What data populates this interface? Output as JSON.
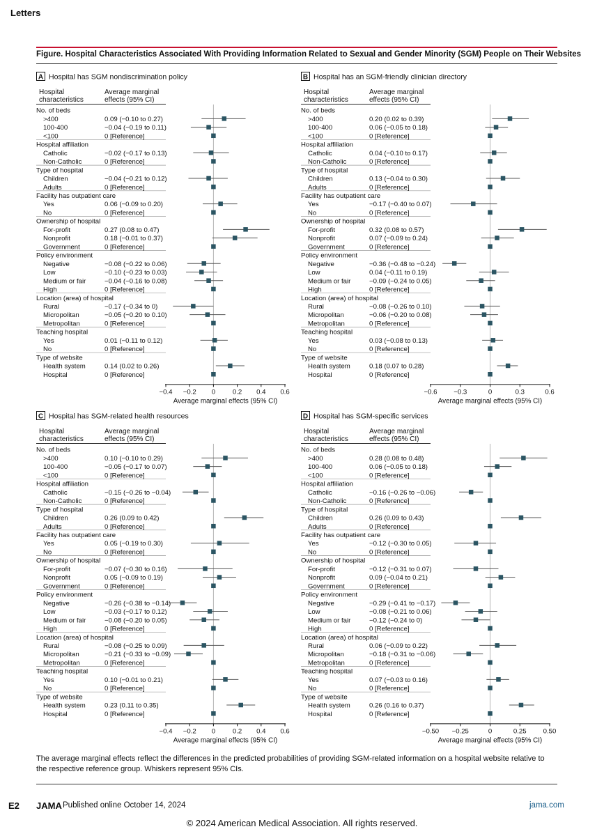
{
  "page": {
    "section": "Letters",
    "figure_title": "Figure. Hospital Characteristics Associated With Providing Information Related to Sexual and Gender Minority (SGM) People on Their Websites",
    "caption": "The average marginal effects reflect the differences in the predicted probabilities of providing SGM-related information on a hospital website relative to the respective reference group. Whiskers represent 95% CIs.",
    "footer": {
      "page_number": "E2",
      "journal": "JAMA",
      "published": "Published online October 14, 2024",
      "site": "jama.com"
    },
    "copyright": "© 2024 American Medical Association. All rights reserved.",
    "colors": {
      "accent_rule": "#c8102e",
      "marker": "#2b5563",
      "link": "#1a5e8a"
    }
  },
  "chart_data": [
    {
      "type": "forest",
      "panel": "A",
      "title": "Hospital has SGM nondiscrimination policy",
      "col_header_1": "Hospital characteristics",
      "col_header_2": "Average marginal effects (95% CI)",
      "xlabel": "Average marginal effects (95% CI)",
      "xlim": [
        -0.4,
        0.6
      ],
      "ticks": [
        -0.4,
        -0.2,
        0,
        0.2,
        0.4,
        0.6
      ],
      "tick_labels": [
        "−0.4",
        "−0.2",
        "0",
        "0.2",
        "0.4",
        "0.6"
      ],
      "rows": [
        {
          "label": "No. of beds",
          "header": true
        },
        {
          "label": ">400",
          "ci": "0.09 (−0.10 to 0.27)",
          "est": 0.09,
          "lo": -0.1,
          "hi": 0.27
        },
        {
          "label": "100-400",
          "ci": "−0.04 (−0.19 to 0.11)",
          "est": -0.04,
          "lo": -0.19,
          "hi": 0.11
        },
        {
          "label": "<100",
          "ci": "0 [Reference]",
          "est": 0,
          "ref": true
        },
        {
          "label": "Hospital affiliation",
          "header": true
        },
        {
          "label": "Catholic",
          "ci": "−0.02 (−0.17 to 0.13)",
          "est": -0.02,
          "lo": -0.17,
          "hi": 0.13
        },
        {
          "label": "Non-Catholic",
          "ci": "0 [Reference]",
          "est": 0,
          "ref": true
        },
        {
          "label": "Type of hospital",
          "header": true
        },
        {
          "label": "Children",
          "ci": "−0.04 (−0.21 to 0.12)",
          "est": -0.04,
          "lo": -0.21,
          "hi": 0.12
        },
        {
          "label": "Adults",
          "ci": "0 [Reference]",
          "est": 0,
          "ref": true
        },
        {
          "label": "Facility has outpatient care",
          "header": true
        },
        {
          "label": "Yes",
          "ci": "0.06 (−0.09 to 0.20)",
          "est": 0.06,
          "lo": -0.09,
          "hi": 0.2
        },
        {
          "label": "No",
          "ci": "0 [Reference]",
          "est": 0,
          "ref": true
        },
        {
          "label": "Ownership of hospital",
          "header": true
        },
        {
          "label": "For-profit",
          "ci": "0.27 (0.08 to 0.47)",
          "est": 0.27,
          "lo": 0.08,
          "hi": 0.47
        },
        {
          "label": "Nonprofit",
          "ci": "0.18 (−0.01 to 0.37)",
          "est": 0.18,
          "lo": -0.01,
          "hi": 0.37
        },
        {
          "label": "Government",
          "ci": "0 [Reference]",
          "est": 0,
          "ref": true
        },
        {
          "label": "Policy environment",
          "header": true
        },
        {
          "label": "Negative",
          "ci": "−0.08 (−0.22 to 0.06)",
          "est": -0.08,
          "lo": -0.22,
          "hi": 0.06
        },
        {
          "label": "Low",
          "ci": "−0.10 (−0.23 to 0.03)",
          "est": -0.1,
          "lo": -0.23,
          "hi": 0.03
        },
        {
          "label": "Medium or fair",
          "ci": "−0.04 (−0.16 to 0.08)",
          "est": -0.04,
          "lo": -0.16,
          "hi": 0.08
        },
        {
          "label": "High",
          "ci": "0 [Reference]",
          "est": 0,
          "ref": true
        },
        {
          "label": "Location (area) of hospital",
          "header": true
        },
        {
          "label": "Rural",
          "ci": "−0.17 (−0.34 to 0)",
          "est": -0.17,
          "lo": -0.34,
          "hi": 0
        },
        {
          "label": "Micropolitan",
          "ci": "−0.05 (−0.20 to 0.10)",
          "est": -0.05,
          "lo": -0.2,
          "hi": 0.1
        },
        {
          "label": "Metropolitan",
          "ci": "0 [Reference]",
          "est": 0,
          "ref": true
        },
        {
          "label": "Teaching hospital",
          "header": true
        },
        {
          "label": "Yes",
          "ci": "0.01 (−0.11 to 0.12)",
          "est": 0.01,
          "lo": -0.11,
          "hi": 0.12
        },
        {
          "label": "No",
          "ci": "0 [Reference]",
          "est": 0,
          "ref": true
        },
        {
          "label": "Type of website",
          "header": true
        },
        {
          "label": "Health system",
          "ci": "0.14 (0.02 to 0.26)",
          "est": 0.14,
          "lo": 0.02,
          "hi": 0.26
        },
        {
          "label": "Hospital",
          "ci": "0 [Reference]",
          "est": 0,
          "ref": true
        }
      ]
    },
    {
      "type": "forest",
      "panel": "B",
      "title": "Hospital has an SGM-friendly clinician directory",
      "col_header_1": "Hospital characteristics",
      "col_header_2": "Average marginal effects (95% CI)",
      "xlabel": "Average marginal effects (95% CI)",
      "xlim": [
        -0.6,
        0.6
      ],
      "ticks": [
        -0.6,
        -0.3,
        0,
        0.3,
        0.6
      ],
      "tick_labels": [
        "−0.6",
        "−0.3",
        "0",
        "0.3",
        "0.6"
      ],
      "rows": [
        {
          "label": "No. of beds",
          "header": true
        },
        {
          "label": ">400",
          "ci": "0.20 (0.02 to 0.39)",
          "est": 0.2,
          "lo": 0.02,
          "hi": 0.39
        },
        {
          "label": "100-400",
          "ci": "0.06 (−0.05 to 0.18)",
          "est": 0.06,
          "lo": -0.05,
          "hi": 0.18
        },
        {
          "label": "<100",
          "ci": "0 [Reference]",
          "est": 0,
          "ref": true
        },
        {
          "label": "Hospital affiliation",
          "header": true
        },
        {
          "label": "Catholic",
          "ci": "0.04 (−0.10 to 0.17)",
          "est": 0.04,
          "lo": -0.1,
          "hi": 0.17
        },
        {
          "label": "Non-Catholic",
          "ci": "0 [Reference]",
          "est": 0,
          "ref": true
        },
        {
          "label": "Type of hospital",
          "header": true
        },
        {
          "label": "Children",
          "ci": "0.13 (−0.04 to 0.30)",
          "est": 0.13,
          "lo": -0.04,
          "hi": 0.3
        },
        {
          "label": "Adults",
          "ci": "0 [Reference]",
          "est": 0,
          "ref": true
        },
        {
          "label": "Facility has outpatient care",
          "header": true
        },
        {
          "label": "Yes",
          "ci": "−0.17 (−0.40 to 0.07)",
          "est": -0.17,
          "lo": -0.4,
          "hi": 0.07
        },
        {
          "label": "No",
          "ci": "0 [Reference]",
          "est": 0,
          "ref": true
        },
        {
          "label": "Ownership of hospital",
          "header": true
        },
        {
          "label": "For-profit",
          "ci": "0.32 (0.08 to 0.57)",
          "est": 0.32,
          "lo": 0.08,
          "hi": 0.57
        },
        {
          "label": "Nonprofit",
          "ci": "0.07 (−0.09 to 0.24)",
          "est": 0.07,
          "lo": -0.09,
          "hi": 0.24
        },
        {
          "label": "Government",
          "ci": "0 [Reference]",
          "est": 0,
          "ref": true
        },
        {
          "label": "Policy environment",
          "header": true
        },
        {
          "label": "Negative",
          "ci": "−0.36 (−0.48 to −0.24)",
          "est": -0.36,
          "lo": -0.48,
          "hi": -0.24
        },
        {
          "label": "Low",
          "ci": "0.04 (−0.11 to 0.19)",
          "est": 0.04,
          "lo": -0.11,
          "hi": 0.19
        },
        {
          "label": "Medium or fair",
          "ci": "−0.09 (−0.24 to 0.05)",
          "est": -0.09,
          "lo": -0.24,
          "hi": 0.05
        },
        {
          "label": "High",
          "ci": "0 [Reference]",
          "est": 0,
          "ref": true
        },
        {
          "label": "Location (area) of hospital",
          "header": true
        },
        {
          "label": "Rural",
          "ci": "−0.08 (−0.26 to 0.10)",
          "est": -0.08,
          "lo": -0.26,
          "hi": 0.1
        },
        {
          "label": "Micropolitan",
          "ci": "−0.06 (−0.20 to 0.08)",
          "est": -0.06,
          "lo": -0.2,
          "hi": 0.08
        },
        {
          "label": "Metropolitan",
          "ci": "0 [Reference]",
          "est": 0,
          "ref": true
        },
        {
          "label": "Teaching hospital",
          "header": true
        },
        {
          "label": "Yes",
          "ci": "0.03 (−0.08 to 0.13)",
          "est": 0.03,
          "lo": -0.08,
          "hi": 0.13
        },
        {
          "label": "No",
          "ci": "0 [Reference]",
          "est": 0,
          "ref": true
        },
        {
          "label": "Type of website",
          "header": true
        },
        {
          "label": "Health system",
          "ci": "0.18 (0.07 to 0.28)",
          "est": 0.18,
          "lo": 0.07,
          "hi": 0.28
        },
        {
          "label": "Hospital",
          "ci": "0 [Reference]",
          "est": 0,
          "ref": true
        }
      ]
    },
    {
      "type": "forest",
      "panel": "C",
      "title": "Hospital has SGM-related health resources",
      "col_header_1": "Hospital characteristics",
      "col_header_2": "Average marginal effects (95% CI)",
      "xlabel": "Average marginal effects (95% CI)",
      "xlim": [
        -0.4,
        0.6
      ],
      "ticks": [
        -0.4,
        -0.2,
        0,
        0.2,
        0.4,
        0.6
      ],
      "tick_labels": [
        "−0.4",
        "−0.2",
        "0",
        "0.2",
        "0.4",
        "0.6"
      ],
      "rows": [
        {
          "label": "No. of beds",
          "header": true
        },
        {
          "label": ">400",
          "ci": "0.10 (−0.10 to 0.29)",
          "est": 0.1,
          "lo": -0.1,
          "hi": 0.29
        },
        {
          "label": "100-400",
          "ci": "−0.05 (−0.17 to 0.07)",
          "est": -0.05,
          "lo": -0.17,
          "hi": 0.07
        },
        {
          "label": "<100",
          "ci": "0 [Reference]",
          "est": 0,
          "ref": true
        },
        {
          "label": "Hospital affiliation",
          "header": true
        },
        {
          "label": "Catholic",
          "ci": "−0.15 (−0.26 to −0.04)",
          "est": -0.15,
          "lo": -0.26,
          "hi": -0.04
        },
        {
          "label": "Non-Catholic",
          "ci": "0 [Reference]",
          "est": 0,
          "ref": true
        },
        {
          "label": "Type of hospital",
          "header": true
        },
        {
          "label": "Children",
          "ci": "0.26 (0.09 to 0.42)",
          "est": 0.26,
          "lo": 0.09,
          "hi": 0.42
        },
        {
          "label": "Adults",
          "ci": "0 [Reference]",
          "est": 0,
          "ref": true
        },
        {
          "label": "Facility has outpatient care",
          "header": true
        },
        {
          "label": "Yes",
          "ci": "0.05 (−0.19 to 0.30)",
          "est": 0.05,
          "lo": -0.19,
          "hi": 0.3
        },
        {
          "label": "No",
          "ci": "0 [Reference]",
          "est": 0,
          "ref": true
        },
        {
          "label": "Ownership of hospital",
          "header": true
        },
        {
          "label": "For-profit",
          "ci": "−0.07 (−0.30 to 0.16)",
          "est": -0.07,
          "lo": -0.3,
          "hi": 0.16
        },
        {
          "label": "Nonprofit",
          "ci": "0.05 (−0.09 to 0.19)",
          "est": 0.05,
          "lo": -0.09,
          "hi": 0.19
        },
        {
          "label": "Government",
          "ci": "0 [Reference]",
          "est": 0,
          "ref": true
        },
        {
          "label": "Policy environment",
          "header": true
        },
        {
          "label": "Negative",
          "ci": "−0.26 (−0.38 to −0.14)",
          "est": -0.26,
          "lo": -0.38,
          "hi": -0.14
        },
        {
          "label": "Low",
          "ci": "−0.03 (−0.17 to 0.12)",
          "est": -0.03,
          "lo": -0.17,
          "hi": 0.12
        },
        {
          "label": "Medium or fair",
          "ci": "−0.08 (−0.20 to 0.05)",
          "est": -0.08,
          "lo": -0.2,
          "hi": 0.05
        },
        {
          "label": "High",
          "ci": "0 [Reference]",
          "est": 0,
          "ref": true
        },
        {
          "label": "Location (area) of hospital",
          "header": true
        },
        {
          "label": "Rural",
          "ci": "−0.08 (−0.25 to 0.09)",
          "est": -0.08,
          "lo": -0.25,
          "hi": 0.09
        },
        {
          "label": "Micropolitan",
          "ci": "−0.21 (−0.33 to −0.09)",
          "est": -0.21,
          "lo": -0.33,
          "hi": -0.09
        },
        {
          "label": "Metropolitan",
          "ci": "0 [Reference]",
          "est": 0,
          "ref": true
        },
        {
          "label": "Teaching hospital",
          "header": true
        },
        {
          "label": "Yes",
          "ci": "0.10 (−0.01 to 0.21)",
          "est": 0.1,
          "lo": -0.01,
          "hi": 0.21
        },
        {
          "label": "No",
          "ci": "0 [Reference]",
          "est": 0,
          "ref": true
        },
        {
          "label": "Type of website",
          "header": true
        },
        {
          "label": "Health system",
          "ci": "0.23 (0.11 to 0.35)",
          "est": 0.23,
          "lo": 0.11,
          "hi": 0.35
        },
        {
          "label": "Hospital",
          "ci": "0 [Reference]",
          "est": 0,
          "ref": true
        }
      ]
    },
    {
      "type": "forest",
      "panel": "D",
      "title": "Hospital has SGM-specific services",
      "col_header_1": "Hospital characteristics",
      "col_header_2": "Average marginal effects (95% CI)",
      "xlabel": "Average marginal effects (95% CI)",
      "xlim": [
        -0.5,
        0.5
      ],
      "ticks": [
        -0.5,
        -0.25,
        0,
        0.25,
        0.5
      ],
      "tick_labels": [
        "−0.50",
        "−0.25",
        "0",
        "0.25",
        "0.50"
      ],
      "rows": [
        {
          "label": "No. of beds",
          "header": true
        },
        {
          "label": ">400",
          "ci": "0.28 (0.08 to 0.48)",
          "est": 0.28,
          "lo": 0.08,
          "hi": 0.48
        },
        {
          "label": "100-400",
          "ci": "0.06 (−0.05 to 0.18)",
          "est": 0.06,
          "lo": -0.05,
          "hi": 0.18
        },
        {
          "label": "<100",
          "ci": "0 [Reference]",
          "est": 0,
          "ref": true
        },
        {
          "label": "Hospital affiliation",
          "header": true
        },
        {
          "label": "Catholic",
          "ci": "−0.16 (−0.26 to −0.06)",
          "est": -0.16,
          "lo": -0.26,
          "hi": -0.06
        },
        {
          "label": "Non-Catholic",
          "ci": "0 [Reference]",
          "est": 0,
          "ref": true
        },
        {
          "label": "Type of hospital",
          "header": true
        },
        {
          "label": "Children",
          "ci": "0.26 (0.09 to 0.43)",
          "est": 0.26,
          "lo": 0.09,
          "hi": 0.43
        },
        {
          "label": "Adults",
          "ci": "0 [Reference]",
          "est": 0,
          "ref": true
        },
        {
          "label": "Facility has outpatient care",
          "header": true
        },
        {
          "label": "Yes",
          "ci": "−0.12 (−0.30 to 0.05)",
          "est": -0.12,
          "lo": -0.3,
          "hi": 0.05
        },
        {
          "label": "No",
          "ci": "0 [Reference]",
          "est": 0,
          "ref": true
        },
        {
          "label": "Ownership of hospital",
          "header": true
        },
        {
          "label": "For-profit",
          "ci": "−0.12 (−0.31 to 0.07)",
          "est": -0.12,
          "lo": -0.31,
          "hi": 0.07
        },
        {
          "label": "Nonprofit",
          "ci": "0.09 (−0.04 to 0.21)",
          "est": 0.09,
          "lo": -0.04,
          "hi": 0.21
        },
        {
          "label": "Government",
          "ci": "0 [Reference]",
          "est": 0,
          "ref": true
        },
        {
          "label": "Policy environment",
          "header": true
        },
        {
          "label": "Negative",
          "ci": "−0.29 (−0.41 to −0.17)",
          "est": -0.29,
          "lo": -0.41,
          "hi": -0.17
        },
        {
          "label": "Low",
          "ci": "−0.08 (−0.21 to 0.06)",
          "est": -0.08,
          "lo": -0.21,
          "hi": 0.06
        },
        {
          "label": "Medium or fair",
          "ci": "−0.12 (−0.24 to 0)",
          "est": -0.12,
          "lo": -0.24,
          "hi": 0
        },
        {
          "label": "High",
          "ci": "0 [Reference]",
          "est": 0,
          "ref": true
        },
        {
          "label": "Location (area) of hospital",
          "header": true
        },
        {
          "label": "Rural",
          "ci": "0.06 (−0.09 to 0.22)",
          "est": 0.06,
          "lo": -0.09,
          "hi": 0.22
        },
        {
          "label": "Micropolitan",
          "ci": "−0.18 (−0.31 to −0.06)",
          "est": -0.18,
          "lo": -0.31,
          "hi": -0.06
        },
        {
          "label": "Metropolitan",
          "ci": "0 [Reference]",
          "est": 0,
          "ref": true
        },
        {
          "label": "Teaching hospital",
          "header": true
        },
        {
          "label": "Yes",
          "ci": "0.07 (−0.03 to 0.16)",
          "est": 0.07,
          "lo": -0.03,
          "hi": 0.16
        },
        {
          "label": "No",
          "ci": "0 [Reference]",
          "est": 0,
          "ref": true
        },
        {
          "label": "Type of website",
          "header": true
        },
        {
          "label": "Health system",
          "ci": "0.26 (0.16 to 0.37)",
          "est": 0.26,
          "lo": 0.16,
          "hi": 0.37
        },
        {
          "label": "Hospital",
          "ci": "0 [Reference]",
          "est": 0,
          "ref": true
        }
      ]
    }
  ]
}
